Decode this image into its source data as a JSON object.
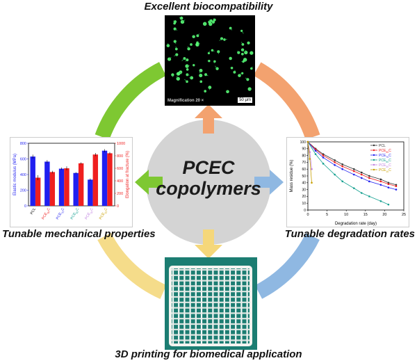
{
  "center": {
    "line1": "PCEC",
    "line2": "copolymers"
  },
  "captions": {
    "top": "Excellent biocompatibility",
    "left": "Tunable mechanical properties",
    "right": "Tunable degradation rates",
    "bottom": "3D printing for biomedical application"
  },
  "colors": {
    "ring_green": "#7ec832",
    "ring_orange": "#f3a26f",
    "ring_blue": "#8fb8e2",
    "ring_yellow": "#f5dc8a",
    "center_circle": "#d4d4d4",
    "arrow_green": "#7ec832",
    "arrow_orange": "#f3a26f",
    "arrow_blue": "#8fb8e2",
    "arrow_yellow": "#f5d77a",
    "bar_modulus": "#1f1ff0",
    "bar_elongation": "#ef1f1f",
    "print_background": "#1c7d72"
  },
  "micrograph": {
    "magnification": "Magnification 20 ×",
    "scale_bar": "50 μm"
  },
  "chart_data": [
    {
      "type": "bar",
      "categories": [
        "PCL",
        "PCE90C",
        "PCE70C",
        "PCE50C",
        "PCE30C",
        "PCE10C"
      ],
      "category_labels": [
        {
          "base": "PCL",
          "sub": "",
          "end": ""
        },
        {
          "base": "PCE",
          "sub": "90",
          "end": "C"
        },
        {
          "base": "PCE",
          "sub": "70",
          "end": "C"
        },
        {
          "base": "PCE",
          "sub": "50",
          "end": "C"
        },
        {
          "base": "PCE",
          "sub": "30",
          "end": "C"
        },
        {
          "base": "PCE",
          "sub": "10",
          "end": "C"
        }
      ],
      "category_colors": [
        "#000000",
        "#ef1f1f",
        "#1f1ff0",
        "#14a090",
        "#c080e0",
        "#c8a000"
      ],
      "series": [
        {
          "name": "Elastic modulus",
          "axis": "left",
          "values": [
            630,
            565,
            475,
            420,
            335,
            705
          ],
          "errors": [
            25,
            20,
            15,
            10,
            15,
            20
          ]
        },
        {
          "name": "Elongation at fracture",
          "axis": "right",
          "values": [
            450,
            540,
            600,
            680,
            820,
            840
          ],
          "errors": [
            40,
            20,
            30,
            15,
            25,
            20
          ]
        }
      ],
      "ylabel": "Elastic modulus (MPa)",
      "ylabel_right": "Elongation at fracture (%)",
      "ylim": [
        0,
        800
      ],
      "ylim_right": [
        0,
        1000
      ],
      "yticks": [
        "0",
        "200",
        "400",
        "600",
        "800"
      ],
      "yticks_right": [
        "0",
        "200",
        "400",
        "600",
        "800",
        "1000"
      ]
    },
    {
      "type": "line",
      "xlabel": "Degradation rate (day)",
      "ylabel": "Mass residue (%)",
      "xlim": [
        0,
        25
      ],
      "ylim": [
        0,
        100
      ],
      "xticks": [
        "0",
        "5",
        "10",
        "15",
        "20",
        "25"
      ],
      "yticks": [
        "0",
        "10",
        "20",
        "30",
        "40",
        "50",
        "60",
        "70",
        "80",
        "90",
        "100"
      ],
      "legend_position": "top-right",
      "series": [
        {
          "label": {
            "base": "PCL",
            "sub": "",
            "end": ""
          },
          "color": "#333333",
          "x": [
            0,
            2,
            4,
            7,
            9,
            12,
            14,
            16,
            19,
            21,
            23
          ],
          "y": [
            100,
            90,
            82,
            73,
            67,
            60,
            55,
            50,
            45,
            40,
            37
          ]
        },
        {
          "label": {
            "base": "PCE",
            "sub": "90",
            "end": "C"
          },
          "color": "#ef1f1f",
          "x": [
            0,
            2,
            4,
            7,
            9,
            12,
            14,
            16,
            19,
            21,
            23
          ],
          "y": [
            100,
            89,
            80,
            70,
            64,
            57,
            52,
            47,
            42,
            38,
            35
          ]
        },
        {
          "label": {
            "base": "PCE",
            "sub": "70",
            "end": "C"
          },
          "color": "#1f1ff0",
          "x": [
            0,
            2,
            4,
            7,
            9,
            12,
            14,
            16,
            19,
            21,
            23
          ],
          "y": [
            100,
            87,
            77,
            66,
            60,
            52,
            47,
            42,
            37,
            33,
            30
          ]
        },
        {
          "label": {
            "base": "PCE",
            "sub": "50",
            "end": "C"
          },
          "color": "#14a090",
          "x": [
            0,
            2,
            4,
            7,
            9,
            12,
            14,
            16,
            19,
            21
          ],
          "y": [
            100,
            82,
            68,
            52,
            42,
            32,
            25,
            20,
            13,
            8
          ]
        },
        {
          "label": {
            "base": "PCE",
            "sub": "30",
            "end": "C"
          },
          "color": "#c080e0",
          "x": [
            0,
            0.5,
            1
          ],
          "y": [
            100,
            85,
            60
          ]
        },
        {
          "label": {
            "base": "PCE",
            "sub": "10",
            "end": "C"
          },
          "color": "#c8a000",
          "x": [
            0,
            0.5,
            1
          ],
          "y": [
            100,
            75,
            40
          ]
        }
      ]
    }
  ]
}
